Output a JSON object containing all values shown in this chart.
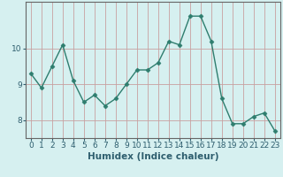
{
  "x": [
    0,
    1,
    2,
    3,
    4,
    5,
    6,
    7,
    8,
    9,
    10,
    11,
    12,
    13,
    14,
    15,
    16,
    17,
    18,
    19,
    20,
    21,
    22,
    23
  ],
  "y": [
    9.3,
    8.9,
    9.5,
    10.1,
    9.1,
    8.5,
    8.7,
    8.4,
    8.6,
    9.0,
    9.4,
    9.4,
    9.6,
    10.2,
    10.1,
    10.9,
    10.9,
    10.2,
    8.6,
    7.9,
    7.9,
    8.1,
    8.2,
    7.7
  ],
  "line_color": "#2e7d6e",
  "marker": "D",
  "markersize": 2.5,
  "linewidth": 1.0,
  "xlabel": "Humidex (Indice chaleur)",
  "xlabel_fontsize": 7.5,
  "background_color": "#d6f0f0",
  "grid_color": "#c8a0a0",
  "ylim": [
    7.5,
    11.3
  ],
  "xlim": [
    -0.5,
    23.5
  ],
  "yticks": [
    8,
    9,
    10
  ],
  "xticks": [
    0,
    1,
    2,
    3,
    4,
    5,
    6,
    7,
    8,
    9,
    10,
    11,
    12,
    13,
    14,
    15,
    16,
    17,
    18,
    19,
    20,
    21,
    22,
    23
  ],
  "tick_fontsize": 6.5
}
